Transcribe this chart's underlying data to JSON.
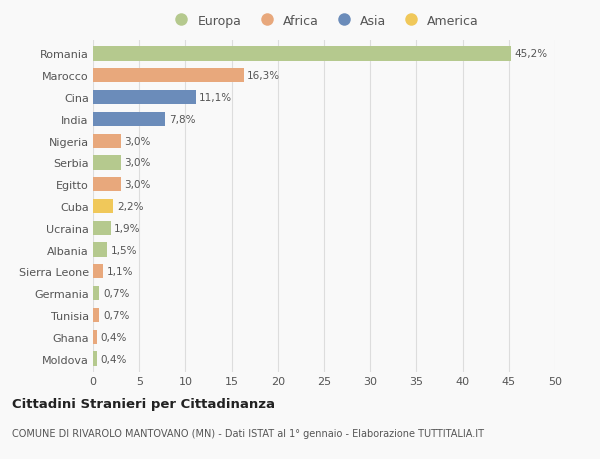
{
  "countries": [
    "Romania",
    "Marocco",
    "Cina",
    "India",
    "Nigeria",
    "Serbia",
    "Egitto",
    "Cuba",
    "Ucraina",
    "Albania",
    "Sierra Leone",
    "Germania",
    "Tunisia",
    "Ghana",
    "Moldova"
  ],
  "values": [
    45.2,
    16.3,
    11.1,
    7.8,
    3.0,
    3.0,
    3.0,
    2.2,
    1.9,
    1.5,
    1.1,
    0.7,
    0.7,
    0.4,
    0.4
  ],
  "labels": [
    "45,2%",
    "16,3%",
    "11,1%",
    "7,8%",
    "3,0%",
    "3,0%",
    "3,0%",
    "2,2%",
    "1,9%",
    "1,5%",
    "1,1%",
    "0,7%",
    "0,7%",
    "0,4%",
    "0,4%"
  ],
  "colors": [
    "#b5c98e",
    "#e8a87c",
    "#6b8cba",
    "#6b8cba",
    "#e8a87c",
    "#b5c98e",
    "#e8a87c",
    "#f0c85a",
    "#b5c98e",
    "#b5c98e",
    "#e8a87c",
    "#b5c98e",
    "#e8a87c",
    "#e8a87c",
    "#b5c98e"
  ],
  "legend_labels": [
    "Europa",
    "Africa",
    "Asia",
    "America"
  ],
  "legend_colors": [
    "#b5c98e",
    "#e8a87c",
    "#6b8cba",
    "#f0c85a"
  ],
  "title": "Cittadini Stranieri per Cittadinanza",
  "subtitle": "COMUNE DI RIVAROLO MANTOVANO (MN) - Dati ISTAT al 1° gennaio - Elaborazione TUTTITALIA.IT",
  "xlim": [
    0,
    50
  ],
  "xticks": [
    0,
    5,
    10,
    15,
    20,
    25,
    30,
    35,
    40,
    45,
    50
  ],
  "background_color": "#f9f9f9",
  "grid_color": "#dddddd"
}
